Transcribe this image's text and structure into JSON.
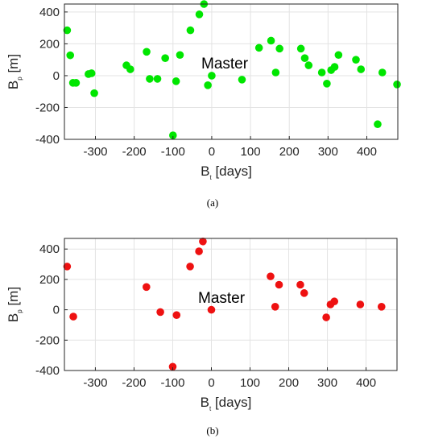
{
  "colors": {
    "panel_a": "#00e600",
    "panel_b": "#ee1111",
    "grid": "#e3e3e3",
    "axis": "#262626"
  },
  "chart_data": [
    {
      "type": "scatter",
      "caption": "(a)",
      "annotation": "Master",
      "xlabel": {
        "main": "B",
        "sub": "t",
        "rest": " [days]"
      },
      "ylabel": {
        "main": "B",
        "sub": "p",
        "rest": " [m]"
      },
      "xlim": [
        -380,
        480
      ],
      "ylim": [
        -400,
        450
      ],
      "xticks": [
        -300,
        -200,
        -100,
        0,
        100,
        200,
        300,
        400
      ],
      "yticks": [
        -400,
        -200,
        0,
        200,
        400
      ],
      "grid": true,
      "color": "#00e600",
      "points": [
        [
          -373,
          285
        ],
        [
          -365,
          128
        ],
        [
          -358,
          -45
        ],
        [
          -350,
          -45
        ],
        [
          -318,
          10
        ],
        [
          -310,
          15
        ],
        [
          -303,
          -110
        ],
        [
          -220,
          65
        ],
        [
          -210,
          40
        ],
        [
          -168,
          150
        ],
        [
          -160,
          -20
        ],
        [
          -140,
          -20
        ],
        [
          -120,
          110
        ],
        [
          -100,
          -375
        ],
        [
          -92,
          -35
        ],
        [
          -82,
          130
        ],
        [
          -55,
          285
        ],
        [
          -32,
          385
        ],
        [
          -20,
          450
        ],
        [
          -10,
          -60
        ],
        [
          0,
          0
        ],
        [
          78,
          -25
        ],
        [
          122,
          175
        ],
        [
          153,
          220
        ],
        [
          165,
          20
        ],
        [
          175,
          170
        ],
        [
          230,
          170
        ],
        [
          240,
          110
        ],
        [
          250,
          65
        ],
        [
          284,
          20
        ],
        [
          297,
          -50
        ],
        [
          308,
          35
        ],
        [
          317,
          55
        ],
        [
          327,
          130
        ],
        [
          372,
          100
        ],
        [
          385,
          40
        ],
        [
          428,
          -305
        ],
        [
          440,
          20
        ],
        [
          478,
          -55
        ]
      ]
    },
    {
      "type": "scatter",
      "caption": "(b)",
      "annotation": "Master",
      "xlabel": {
        "main": "B",
        "sub": "t",
        "rest": " [days]"
      },
      "ylabel": {
        "main": "B",
        "sub": "p",
        "rest": " [m]"
      },
      "xlim": [
        -380,
        480
      ],
      "ylim": [
        -400,
        470
      ],
      "xticks": [
        -300,
        -200,
        -100,
        0,
        100,
        200,
        300,
        400
      ],
      "yticks": [
        -400,
        -200,
        0,
        200,
        400
      ],
      "grid": true,
      "color": "#ee1111",
      "points": [
        [
          -373,
          285
        ],
        [
          -357,
          -45
        ],
        [
          -168,
          150
        ],
        [
          -132,
          -15
        ],
        [
          -100,
          -375
        ],
        [
          -90,
          -35
        ],
        [
          -55,
          285
        ],
        [
          -32,
          385
        ],
        [
          -22,
          450
        ],
        [
          0,
          0
        ],
        [
          153,
          220
        ],
        [
          165,
          20
        ],
        [
          175,
          165
        ],
        [
          230,
          165
        ],
        [
          240,
          110
        ],
        [
          297,
          -50
        ],
        [
          308,
          35
        ],
        [
          318,
          55
        ],
        [
          385,
          35
        ],
        [
          440,
          20
        ]
      ]
    }
  ]
}
